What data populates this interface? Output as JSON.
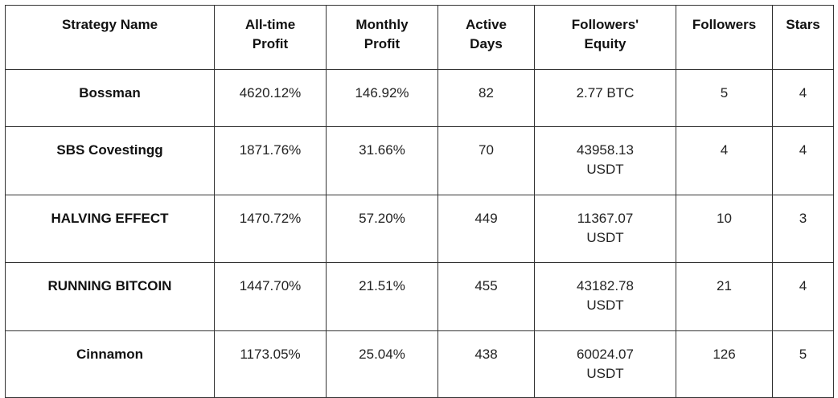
{
  "table": {
    "header": [
      "Strategy Name",
      "All-time Profit",
      "Monthly Profit",
      "Active Days",
      "Followers' Equity",
      "Followers",
      "Stars"
    ],
    "rows": [
      [
        "Bossman",
        "4620.12%",
        "146.92%",
        "82",
        "2.77 BTC",
        "5",
        "4"
      ],
      [
        "SBS Covestingg",
        "1871.76%",
        "31.66%",
        "70",
        "43958.13 USDT",
        "4",
        "4"
      ],
      [
        "HALVING EFFECT",
        "1470.72%",
        "57.20%",
        "449",
        "11367.07 USDT",
        "10",
        "3"
      ],
      [
        "RUNNING BITCOIN",
        "1447.70%",
        "21.51%",
        "455",
        "43182.78 USDT",
        "21",
        "4"
      ],
      [
        "Cinnamon",
        "1173.05%",
        "25.04%",
        "438",
        "60024.07 USDT",
        "126",
        "5"
      ]
    ]
  }
}
